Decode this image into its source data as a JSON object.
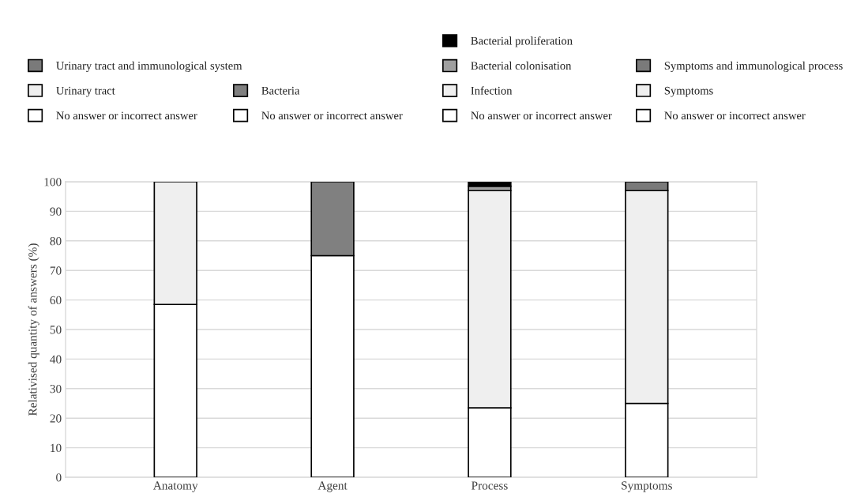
{
  "chart_data": {
    "type": "bar",
    "stacked": true,
    "ylabel": "Relativised quantity of answers (%)",
    "categories": [
      "Anatomy",
      "Agent",
      "Process",
      "Symptoms"
    ],
    "series": [
      {
        "name": "No answer or incorrect answer",
        "color": "#ffffff",
        "values": [
          58.5,
          null,
          null,
          null
        ]
      },
      {
        "name": "Urinary tract",
        "color": "#efefef",
        "values": [
          41.5,
          null,
          null,
          null
        ]
      },
      {
        "name": "Urinary tract and immunological system",
        "color": "#7a7a7a",
        "values": [
          null,
          null,
          null,
          null
        ]
      },
      {
        "name": "No answer or incorrect answer",
        "color": "#ffffff",
        "values": [
          null,
          75,
          null,
          null
        ]
      },
      {
        "name": "Bacteria",
        "color": "#808080",
        "values": [
          null,
          25,
          null,
          null
        ]
      },
      {
        "name": "No answer or incorrect answer",
        "color": "#ffffff",
        "values": [
          null,
          null,
          23.5,
          null
        ]
      },
      {
        "name": "Infection",
        "color": "#efefef",
        "values": [
          null,
          null,
          73.5,
          null
        ]
      },
      {
        "name": "Bacterial colonisation",
        "color": "#a0a0a0",
        "values": [
          null,
          null,
          1.5,
          null
        ]
      },
      {
        "name": "Bacterial proliferation",
        "color": "#000000",
        "values": [
          null,
          null,
          1.5,
          null
        ]
      },
      {
        "name": "No answer or incorrect answer",
        "color": "#ffffff",
        "values": [
          null,
          null,
          null,
          25
        ]
      },
      {
        "name": "Symptoms",
        "color": "#efefef",
        "values": [
          null,
          null,
          null,
          72
        ]
      },
      {
        "name": "Symptoms and immunological process",
        "color": "#7a7a7a",
        "values": [
          null,
          null,
          null,
          3
        ]
      }
    ],
    "ylim": [
      0,
      100
    ],
    "yticks": [
      0,
      10,
      20,
      30,
      40,
      50,
      60,
      70,
      80,
      90,
      100
    ],
    "grid": "y",
    "legend": "top"
  }
}
